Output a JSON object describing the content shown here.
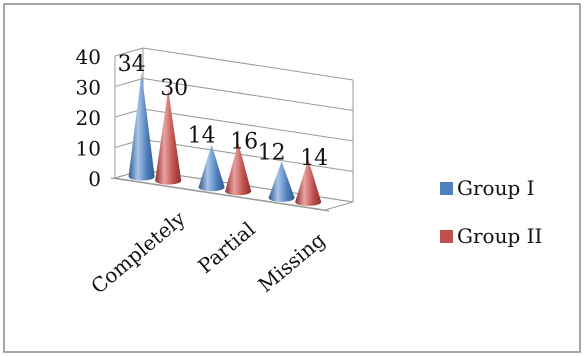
{
  "colors": {
    "group_1": "#4f81bd",
    "group_1_light": "#a9c4e8",
    "group_1_dark": "#2e5a8f",
    "group_2": "#c0504d",
    "group_2_light": "#e8a3a1",
    "group_2_dark": "#8c2e2c",
    "grid": "#9a9a9a",
    "frame": "#8a8a8a"
  },
  "chart_data": {
    "type": "bar",
    "style": "3d-cone",
    "categories": [
      "Completely",
      "Partial",
      "Missing"
    ],
    "series": [
      {
        "name": "Group I",
        "values": [
          34,
          14,
          12
        ]
      },
      {
        "name": "Group II",
        "values": [
          30,
          16,
          14
        ]
      }
    ],
    "ylim": [
      0,
      40
    ],
    "yticks": [
      "0",
      "10",
      "20",
      "30",
      "40"
    ],
    "grid": true,
    "legend_position": "right",
    "data_labels": true
  }
}
